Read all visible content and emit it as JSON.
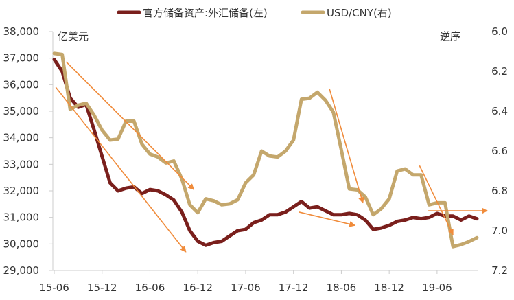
{
  "chart_data": {
    "type": "line",
    "title": "",
    "left_unit": "亿美元",
    "right_unit": "逆序",
    "left_axis": {
      "min": 29000,
      "max": 38000,
      "ticks": [
        29000,
        30000,
        31000,
        32000,
        33000,
        34000,
        35000,
        36000,
        37000,
        38000
      ],
      "tick_labels": [
        "29,000",
        "30,000",
        "31,000",
        "32,000",
        "33,000",
        "34,000",
        "35,000",
        "36,000",
        "37,000",
        "38,000"
      ]
    },
    "right_axis": {
      "min": 6.0,
      "max": 7.2,
      "inverted": true,
      "ticks": [
        6.0,
        6.2,
        6.4,
        6.6,
        6.8,
        7.0,
        7.2
      ],
      "tick_labels": [
        "6.0",
        "6.2",
        "6.4",
        "6.6",
        "6.8",
        "7.0",
        "7.2"
      ]
    },
    "x_tick_labels": [
      {
        "label": "15-06",
        "index": 0
      },
      {
        "label": "15-12",
        "index": 6
      },
      {
        "label": "16-06",
        "index": 12
      },
      {
        "label": "16-12",
        "index": 18
      },
      {
        "label": "17-06",
        "index": 24
      },
      {
        "label": "17-12",
        "index": 30
      },
      {
        "label": "18-06",
        "index": 36
      },
      {
        "label": "18-12",
        "index": 42
      },
      {
        "label": "19-06",
        "index": 48
      }
    ],
    "x_count": 54,
    "grid": false,
    "legend_position": "top-center",
    "series": [
      {
        "name": "官方储备资产:外汇储备(左)",
        "axis": "left",
        "color": "#7a1f1c",
        "values": [
          36950,
          36500,
          35500,
          35150,
          35250,
          34300,
          33300,
          32300,
          32000,
          32100,
          32150,
          31900,
          32050,
          32000,
          31850,
          31650,
          31200,
          30500,
          30100,
          29950,
          30050,
          30100,
          30300,
          30500,
          30550,
          30800,
          30900,
          31100,
          31100,
          31200,
          31400,
          31600,
          31350,
          31400,
          31250,
          31100,
          31100,
          31150,
          31100,
          30900,
          30550,
          30600,
          30700,
          30850,
          30900,
          31000,
          30950,
          31000,
          31150,
          31050,
          31050,
          30900,
          31050,
          30950
        ]
      },
      {
        "name": "USD/CNY(右)",
        "axis": "right",
        "color": "#c4a76c",
        "values": [
          6.11,
          6.115,
          6.39,
          6.37,
          6.36,
          6.42,
          6.495,
          6.545,
          6.54,
          6.45,
          6.45,
          6.565,
          6.615,
          6.63,
          6.66,
          6.65,
          6.74,
          6.87,
          6.91,
          6.84,
          6.85,
          6.87,
          6.865,
          6.845,
          6.76,
          6.72,
          6.6,
          6.625,
          6.63,
          6.6,
          6.545,
          6.34,
          6.335,
          6.305,
          6.345,
          6.405,
          6.595,
          6.79,
          6.795,
          6.83,
          6.92,
          6.89,
          6.84,
          6.7,
          6.69,
          6.72,
          6.72,
          6.87,
          6.86,
          6.86,
          7.08,
          7.07,
          7.055,
          7.035
        ]
      }
    ],
    "annotations": [
      {
        "type": "arrow",
        "from_index": 1.5,
        "from_value": 36860,
        "to_index": 17.5,
        "to_value": 32050,
        "color": "#f08c3c"
      },
      {
        "type": "arrow",
        "from_index": 0.2,
        "from_value": 35900,
        "to_index": 16.5,
        "to_value": 29700,
        "color": "#f08c3c"
      },
      {
        "type": "arrow",
        "from_index": 30.7,
        "from_value": 31200,
        "to_index": 37.7,
        "to_value": 30700,
        "color": "#f08c3c"
      },
      {
        "type": "arrow",
        "from_index": 34.5,
        "from_value": 35850,
        "to_index": 38.7,
        "to_value": 31550,
        "color": "#f08c3c"
      },
      {
        "type": "arrow",
        "from_index": 45.8,
        "from_value": 32950,
        "to_index": 50.0,
        "to_value": 30350,
        "color": "#f08c3c"
      },
      {
        "type": "arrow",
        "from_index": 46.9,
        "from_value": 31250,
        "to_index": 54.3,
        "to_value": 31250,
        "color": "#f08c3c"
      }
    ]
  }
}
